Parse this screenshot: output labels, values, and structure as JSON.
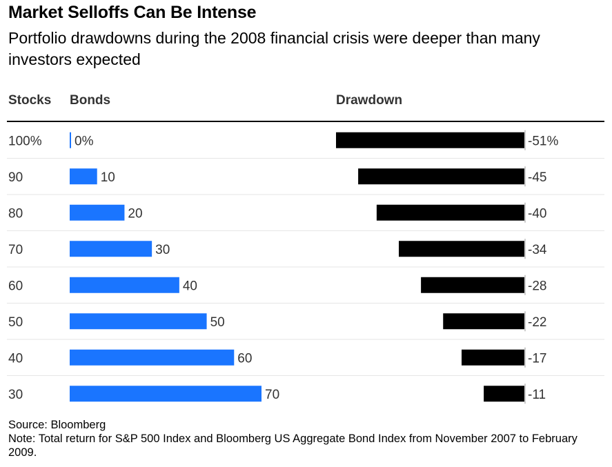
{
  "title": "Market Selloffs Can Be Intense",
  "subtitle": "Portfolio drawdowns during the 2008 financial crisis were deeper than many investors expected",
  "headers": {
    "stocks": "Stocks",
    "bonds": "Bonds",
    "drawdown": "Drawdown"
  },
  "colors": {
    "bonds_bar": "#1a75ff",
    "drawdown_bar": "#000000",
    "row_separator": "#e6e6e6",
    "text_label": "#333333"
  },
  "chart_data": {
    "type": "table",
    "columns": [
      "Stocks",
      "Bonds",
      "Drawdown"
    ],
    "stocks_labels": [
      "100%",
      "90",
      "80",
      "70",
      "60",
      "50",
      "40",
      "30"
    ],
    "bonds": [
      0,
      10,
      20,
      30,
      40,
      50,
      60,
      70
    ],
    "bonds_labels": [
      "0%",
      "10",
      "20",
      "30",
      "40",
      "50",
      "60",
      "70"
    ],
    "drawdown": [
      -51,
      -45,
      -40,
      -34,
      -28,
      -22,
      -17,
      -11
    ],
    "drawdown_labels": [
      "-51%",
      "-45",
      "-40",
      "-34",
      "-28",
      "-22",
      "-17",
      "-11"
    ],
    "bonds_axis_max": 70,
    "drawdown_axis_min": -51
  },
  "footer": {
    "source": "Source: Bloomberg",
    "note": "Note: Total return for S&P 500 Index and Bloomberg US Aggregate Bond Index from November 2007 to February 2009."
  }
}
